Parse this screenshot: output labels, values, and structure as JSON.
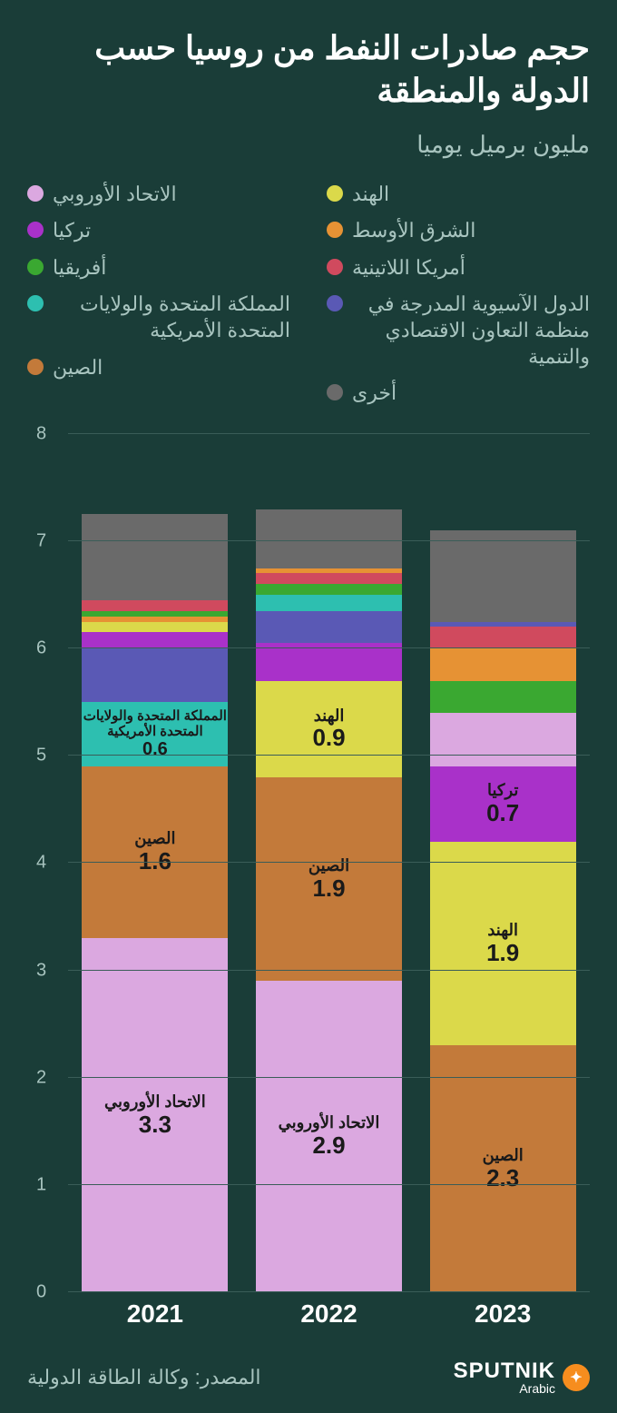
{
  "title": "حجم صادرات النفط من روسيا حسب الدولة والمنطقة",
  "subtitle": "مليون برميل يوميا",
  "source": "المصدر: وكالة الطاقة الدولية",
  "logo": {
    "main": "SPUTNIK",
    "sub": "Arabic"
  },
  "chart": {
    "type": "stacked-bar",
    "background_color": "#1a3d38",
    "grid_color": "#3a5d58",
    "ylim": [
      0,
      8
    ],
    "ytick_step": 1,
    "yticks": [
      0,
      1,
      2,
      3,
      4,
      5,
      6,
      7,
      8
    ],
    "series": [
      {
        "key": "eu",
        "label": "الاتحاد الأوروبي",
        "color": "#dba8e0"
      },
      {
        "key": "turkey",
        "label": "تركيا",
        "color": "#a931c9"
      },
      {
        "key": "africa",
        "label": "أفريقيا",
        "color": "#3aa831"
      },
      {
        "key": "uk_us",
        "label": "المملكة المتحدة والولايات المتحدة الأمريكية",
        "color": "#2dbfb0"
      },
      {
        "key": "china",
        "label": "الصين",
        "color": "#c37a3a"
      },
      {
        "key": "india",
        "label": "الهند",
        "color": "#dbd94a"
      },
      {
        "key": "mideast",
        "label": "الشرق الأوسط",
        "color": "#e69234"
      },
      {
        "key": "latam",
        "label": "أمريكا اللاتينية",
        "color": "#d04a5e"
      },
      {
        "key": "oecd_asia",
        "label": "الدول الآسيوية المدرجة في منظمة التعاون الاقتصادي والتنمية",
        "color": "#5a59b5"
      },
      {
        "key": "other",
        "label": "أخرى",
        "color": "#6a6a6a"
      }
    ],
    "legend_cols": {
      "right": [
        "eu",
        "turkey",
        "africa",
        "uk_us",
        "china"
      ],
      "left": [
        "india",
        "mideast",
        "latam",
        "oecd_asia",
        "other"
      ]
    },
    "years": [
      "2021",
      "2022",
      "2023"
    ],
    "data": {
      "2021": [
        {
          "key": "eu",
          "value": 3.3,
          "show_label": true
        },
        {
          "key": "china",
          "value": 1.6,
          "show_label": true
        },
        {
          "key": "uk_us",
          "value": 0.6,
          "show_label": true,
          "small": true
        },
        {
          "key": "oecd_asia",
          "value": 0.5,
          "show_label": false
        },
        {
          "key": "turkey",
          "value": 0.15,
          "show_label": false
        },
        {
          "key": "india",
          "value": 0.1,
          "show_label": false
        },
        {
          "key": "mideast",
          "value": 0.05,
          "show_label": false
        },
        {
          "key": "africa",
          "value": 0.05,
          "show_label": false
        },
        {
          "key": "latam",
          "value": 0.1,
          "show_label": false
        },
        {
          "key": "other",
          "value": 0.8,
          "show_label": false
        }
      ],
      "2022": [
        {
          "key": "eu",
          "value": 2.9,
          "show_label": true
        },
        {
          "key": "china",
          "value": 1.9,
          "show_label": true
        },
        {
          "key": "india",
          "value": 0.9,
          "show_label": true
        },
        {
          "key": "turkey",
          "value": 0.35,
          "show_label": false
        },
        {
          "key": "oecd_asia",
          "value": 0.3,
          "show_label": false
        },
        {
          "key": "uk_us",
          "value": 0.15,
          "show_label": false
        },
        {
          "key": "africa",
          "value": 0.1,
          "show_label": false
        },
        {
          "key": "latam",
          "value": 0.1,
          "show_label": false
        },
        {
          "key": "mideast",
          "value": 0.05,
          "show_label": false
        },
        {
          "key": "other",
          "value": 0.55,
          "show_label": false
        }
      ],
      "2023": [
        {
          "key": "china",
          "value": 2.3,
          "show_label": true
        },
        {
          "key": "india",
          "value": 1.9,
          "show_label": true
        },
        {
          "key": "turkey",
          "value": 0.7,
          "show_label": true
        },
        {
          "key": "eu",
          "value": 0.5,
          "show_label": false
        },
        {
          "key": "africa",
          "value": 0.3,
          "show_label": false
        },
        {
          "key": "mideast",
          "value": 0.3,
          "show_label": false
        },
        {
          "key": "latam",
          "value": 0.2,
          "show_label": false
        },
        {
          "key": "oecd_asia",
          "value": 0.05,
          "show_label": false
        },
        {
          "key": "other",
          "value": 0.85,
          "show_label": false
        }
      ]
    }
  }
}
